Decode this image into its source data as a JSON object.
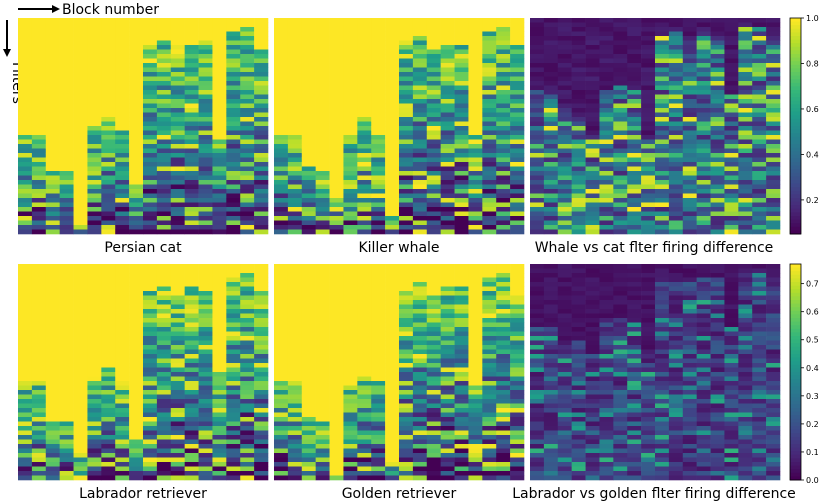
{
  "figure": {
    "x_axis_label": "Block number",
    "y_axis_label": "Filters"
  },
  "colormap": {
    "name": "viridis",
    "stops": [
      "#440154",
      "#482878",
      "#3e4989",
      "#31688e",
      "#26828e",
      "#1f9e89",
      "#35b779",
      "#6ece58",
      "#b5de2b",
      "#fde725"
    ]
  },
  "chart_data": [
    {
      "type": "heatmap",
      "title": "Persian cat",
      "columns": 18,
      "rows": 48,
      "value_range": [
        0,
        1
      ],
      "pattern": "activation",
      "seed": 11
    },
    {
      "type": "heatmap",
      "title": "Killer whale",
      "columns": 18,
      "rows": 48,
      "value_range": [
        0,
        1
      ],
      "pattern": "activation",
      "seed": 23
    },
    {
      "type": "heatmap",
      "title": "Whale vs cat flter firing difference",
      "columns": 18,
      "rows": 48,
      "value_range": [
        0,
        1
      ],
      "pattern": "difference",
      "seed": 37,
      "colorbar": {
        "ticks": [
          0.2,
          0.4,
          0.6,
          0.8,
          1.0
        ],
        "tick_labels": [
          "0.2",
          "0.4",
          "0.6",
          "0.8",
          "1.0"
        ],
        "range": [
          0.05,
          1.0
        ]
      }
    },
    {
      "type": "heatmap",
      "title": "Labrador retriever",
      "columns": 18,
      "rows": 48,
      "value_range": [
        0,
        1
      ],
      "pattern": "activation",
      "seed": 41
    },
    {
      "type": "heatmap",
      "title": "Golden retriever",
      "columns": 18,
      "rows": 48,
      "value_range": [
        0,
        1
      ],
      "pattern": "activation",
      "seed": 53
    },
    {
      "type": "heatmap",
      "title": "Labrador vs golden flter firing difference",
      "columns": 18,
      "rows": 48,
      "value_range": [
        0,
        0.75
      ],
      "pattern": "difference_small",
      "seed": 67,
      "colorbar": {
        "ticks": [
          0.0,
          0.1,
          0.2,
          0.3,
          0.4,
          0.5,
          0.6,
          0.7
        ],
        "tick_labels": [
          "0.0",
          "0.1",
          "0.2",
          "0.3",
          "0.4",
          "0.5",
          "0.6",
          "0.7"
        ],
        "range": [
          0.0,
          0.77
        ]
      }
    }
  ]
}
